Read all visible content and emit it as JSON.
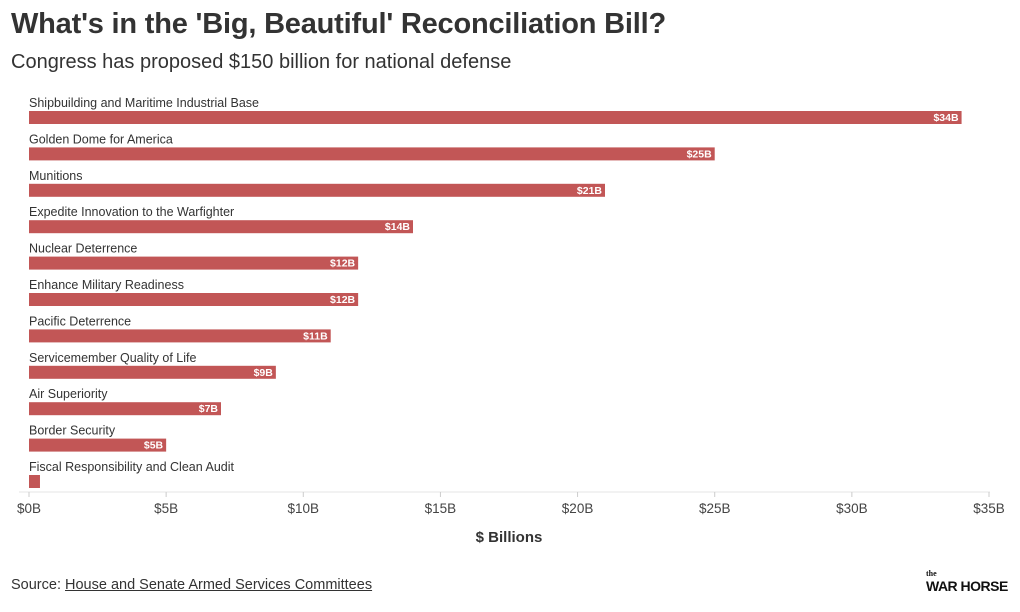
{
  "title": "What's in the 'Big, Beautiful' Reconciliation Bill?",
  "subtitle": "Congress has proposed $150 billion for national defense",
  "source": {
    "prefix": "Source: ",
    "link_text": "House and Senate Armed Services Committees"
  },
  "logo": {
    "small": "the",
    "name": "WAR HORSE"
  },
  "chart_data": {
    "type": "bar",
    "orientation": "horizontal",
    "categories": [
      "Shipbuilding and Maritime Industrial Base",
      "Golden Dome for America",
      "Munitions",
      "Expedite Innovation to the Warfighter",
      "Nuclear Deterrence",
      "Enhance Military Readiness",
      "Pacific Deterrence",
      "Servicemember Quality of Life",
      "Air Superiority",
      "Border Security",
      "Fiscal Responsibility and Clean Audit"
    ],
    "values": [
      34,
      25,
      21,
      14,
      12,
      12,
      11,
      9,
      7,
      5,
      0.4
    ],
    "data_labels": [
      "$34B",
      "$25B",
      "$21B",
      "$14B",
      "$12B",
      "$12B",
      "$11B",
      "$9B",
      "$7B",
      "$5B",
      ""
    ],
    "xlabel": "$ Billions",
    "xlim": [
      0,
      35
    ],
    "xticks": [
      0,
      5,
      10,
      15,
      20,
      25,
      30,
      35
    ],
    "xtick_labels": [
      "$0B",
      "$5B",
      "$10B",
      "$15B",
      "$20B",
      "$25B",
      "$30B",
      "$35B"
    ],
    "bar_color": "#c25656",
    "grid": false
  }
}
